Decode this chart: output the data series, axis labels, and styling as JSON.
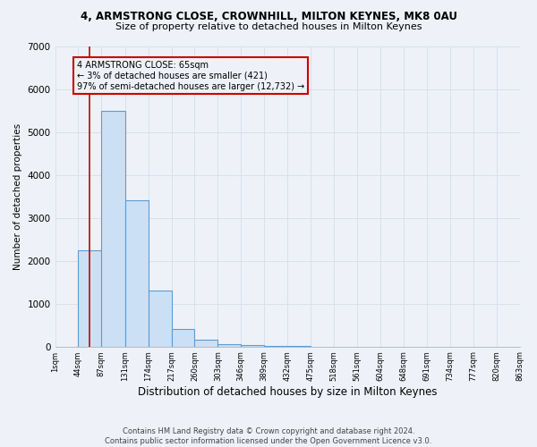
{
  "title1": "4, ARMSTRONG CLOSE, CROWNHILL, MILTON KEYNES, MK8 0AU",
  "title2": "Size of property relative to detached houses in Milton Keynes",
  "xlabel": "Distribution of detached houses by size in Milton Keynes",
  "ylabel": "Number of detached properties",
  "footnote": "Contains HM Land Registry data © Crown copyright and database right 2024.\nContains public sector information licensed under the Open Government Licence v3.0.",
  "bins": [
    1,
    44,
    87,
    131,
    174,
    217,
    260,
    303,
    346,
    389,
    432,
    475,
    518,
    561,
    604,
    648,
    691,
    734,
    777,
    820,
    863
  ],
  "counts": [
    0,
    2250,
    5500,
    3400,
    1300,
    400,
    150,
    50,
    30,
    10,
    5,
    0,
    0,
    0,
    0,
    0,
    0,
    0,
    0,
    0
  ],
  "bar_facecolor": "#cce0f5",
  "bar_edgecolor": "#5b9bd5",
  "redline_x": 65,
  "annotation_text": "4 ARMSTRONG CLOSE: 65sqm\n← 3% of detached houses are smaller (421)\n97% of semi-detached houses are larger (12,732) →",
  "annotation_box_color": "#cc0000",
  "ylim": [
    0,
    7000
  ],
  "tick_labels": [
    "1sqm",
    "44sqm",
    "87sqm",
    "131sqm",
    "174sqm",
    "217sqm",
    "260sqm",
    "303sqm",
    "346sqm",
    "389sqm",
    "432sqm",
    "475sqm",
    "518sqm",
    "561sqm",
    "604sqm",
    "648sqm",
    "691sqm",
    "734sqm",
    "777sqm",
    "820sqm",
    "863sqm"
  ],
  "background_color": "#eef2f8",
  "grid_color": "#d8e0ec"
}
